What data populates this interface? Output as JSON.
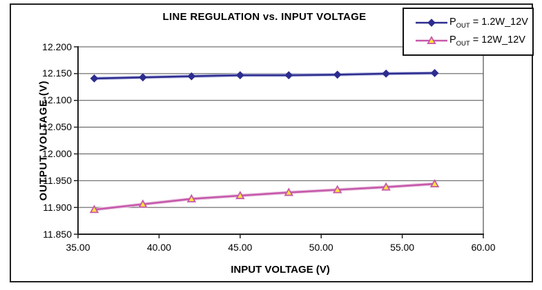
{
  "chart_data": {
    "type": "line",
    "title": "LINE REGULATION vs. INPUT VOLTAGE",
    "xlabel": "INPUT VOLTAGE (V)",
    "ylabel": "OUTPUT VOLTAGE (V)",
    "xlim": [
      35,
      60
    ],
    "ylim": [
      11.85,
      12.2
    ],
    "grid": "horizontal",
    "legend_position": "top-right",
    "xtick_values": [
      35,
      40,
      45,
      50,
      55,
      60
    ],
    "xtick_labels": [
      "35.00",
      "40.00",
      "45.00",
      "50.00",
      "55.00",
      "60.00"
    ],
    "ytick_values": [
      12.2,
      12.15,
      12.1,
      12.05,
      12.0,
      11.95,
      11.9,
      11.85
    ],
    "ytick_labels": [
      "12.200",
      "12.150",
      "12.100",
      "12.050",
      "12.000",
      "11.950",
      "11.900",
      "11.850"
    ],
    "x": [
      36,
      39,
      42,
      45,
      48,
      51,
      54,
      57
    ],
    "series": [
      {
        "name": "POUT = 1.2W_12V",
        "label_parts": {
          "base": "P",
          "sub": "OUT",
          "rest": " = 1.2W_12V"
        },
        "marker": "diamond",
        "color": "#2d2d8f",
        "halo_color": "#c3c6e8",
        "marker_fill": "#2d2d8f",
        "marker_stroke": "#2d2d8f",
        "values": [
          12.141,
          12.143,
          12.145,
          12.147,
          12.147,
          12.148,
          12.15,
          12.151
        ]
      },
      {
        "name": "POUT = 12W_12V",
        "label_parts": {
          "base": "P",
          "sub": "OUT",
          "rest": " = 12W_12V"
        },
        "marker": "triangle",
        "color": "#c558ab",
        "halo_color": "#eccce2",
        "marker_fill": "#ffe23a",
        "marker_stroke": "#c558ab",
        "values": [
          11.896,
          11.906,
          11.916,
          11.922,
          11.928,
          11.933,
          11.938,
          11.944
        ]
      }
    ],
    "colors": {
      "gridline": "#4d4d4d",
      "axis": "#1f1f1f",
      "plot_border": "#4d4d4d",
      "background": "#ffffff"
    }
  }
}
